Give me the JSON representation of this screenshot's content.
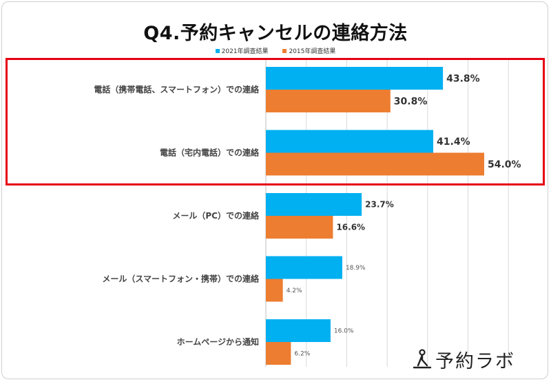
{
  "chart_data": {
    "type": "bar",
    "orientation": "horizontal",
    "title": "Q4.予約キャンセルの連絡方法",
    "categories": [
      "電話（携帯電話、スマートフォン）での連絡",
      "電話（宅内電話）での連絡",
      "メール（PC）での連絡",
      "メール（スマートフォン・携帯）での連絡",
      "ホームページから通知"
    ],
    "series": [
      {
        "name": "2021年調査結果",
        "color": "#00b0f0",
        "values": [
          43.8,
          41.4,
          23.7,
          18.9,
          16.0
        ],
        "labels": [
          "43.8%",
          "41.4%",
          "23.7%",
          "18.9%",
          "16.0%"
        ]
      },
      {
        "name": "2015年調査結果",
        "color": "#ed7d31",
        "values": [
          30.8,
          54.0,
          16.6,
          4.2,
          6.2
        ],
        "labels": [
          "30.8%",
          "54.0%",
          "16.6%",
          "4.2%",
          "6.2%"
        ]
      }
    ],
    "xlim": [
      0,
      60
    ],
    "grid": true,
    "legend": "top-center",
    "highlighted_categories": [
      0,
      1
    ]
  },
  "logo": {
    "text": "予約ラボ",
    "icon": "person-icon"
  }
}
